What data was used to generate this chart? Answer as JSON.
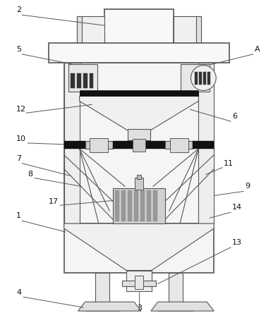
{
  "bg_color": "#ffffff",
  "line_color": "#555555",
  "figsize": [
    3.94,
    4.44
  ],
  "dpi": 100
}
